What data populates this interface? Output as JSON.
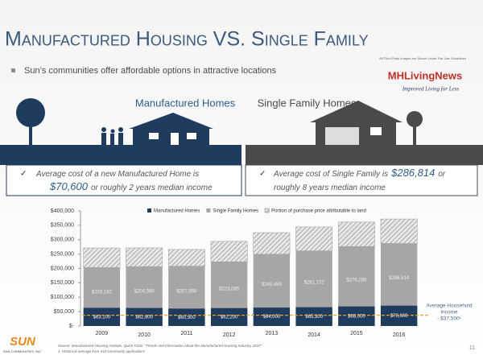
{
  "slide": {
    "title": "Manufactured Housing VS. Single Family",
    "bullet": "Sun’s communities offer affordable options in attractive locations"
  },
  "logo": {
    "note": "All Third Party Images are Shown Under Fair Use Guidelines",
    "name": "MHLivingNews",
    "tagline": "Improved Living for Less"
  },
  "panels": [
    {
      "heading": "Manufactured Homes",
      "text_before": "Average cost of a new Manufactured Home is",
      "price": "$70,600",
      "text_after_lines": [
        "or roughly 2 years median income"
      ]
    },
    {
      "heading": "Single Family Homes",
      "text_before": "Average cost of Single Family is",
      "price": "$286,814",
      "text_after_lines": [
        "or",
        "roughly 8 years median income"
      ]
    }
  ],
  "chart_data": {
    "type": "bar",
    "categories": [
      "2009",
      "2010",
      "2011",
      "2012",
      "2013",
      "2014",
      "2015",
      "2016"
    ],
    "series": [
      {
        "name": "Manufactured Homes",
        "color": "#1f3b5e",
        "stack": false,
        "values": [
          63100,
          62800,
          60500,
          62200,
          64000,
          65300,
          68000,
          70600
        ],
        "value_labels": [
          "$63,100",
          "$62,800",
          "$60,500",
          "$62,200",
          "$64,000",
          "$65,300",
          "$68,000",
          "$70,600"
        ]
      },
      {
        "name": "Single Family Homes",
        "color": "#a6a6a6",
        "stack": false,
        "values": [
          203182,
          206566,
          207959,
          223085,
          249459,
          261172,
          276288,
          286814
        ],
        "value_labels": [
          "$203,182",
          "$206,566",
          "$207,959",
          "$223,085",
          "$249,459",
          "$261,172",
          "$276,288",
          "$286,814"
        ]
      },
      {
        "name": "Portion of purchase price attributable to land",
        "color": "#8c8c8c",
        "pattern": "hatch",
        "stack": true,
        "values": [
          68000,
          65000,
          58000,
          71000,
          75000,
          83000,
          85000,
          85000
        ]
      }
    ],
    "ylim": [
      0,
      400000
    ],
    "yticks": [
      {
        "value": 0,
        "label": "$-"
      },
      {
        "value": 50000,
        "label": "$50,000"
      },
      {
        "value": 100000,
        "label": "$100,000"
      },
      {
        "value": 150000,
        "label": "$150,000"
      },
      {
        "value": 200000,
        "label": "$200,000"
      },
      {
        "value": 250000,
        "label": "$250,000"
      },
      {
        "value": 300000,
        "label": "$300,000"
      },
      {
        "value": 350000,
        "label": "$350,000"
      },
      {
        "value": 400000,
        "label": "$400,000"
      }
    ],
    "reference_line": {
      "value": 37500,
      "color": "#f0a030",
      "label_lines": [
        "Average Household",
        "Income",
        "- $37,500¹"
      ]
    }
  },
  "footer": {
    "company_logo": "SUN",
    "company_name": "SUN COMMUNITIES, INC.",
    "source": "Source: Manufactured Housing Institute, Quick Facts: \"Trends and Information About the Manufactured Housing Industry, 2017\"",
    "note": "1. Historical average from SUI community applications",
    "page": "11"
  }
}
